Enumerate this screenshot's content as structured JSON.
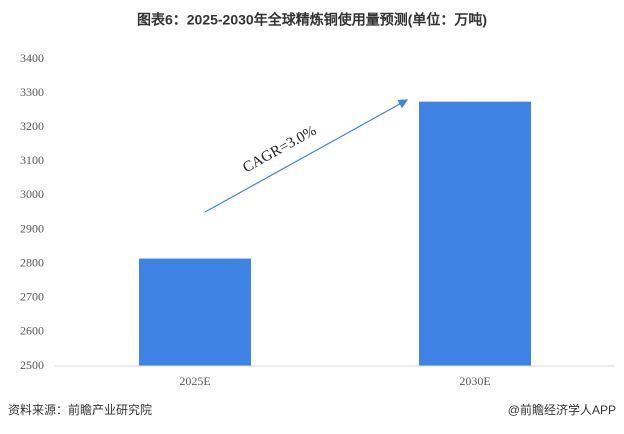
{
  "chart_data": {
    "type": "bar",
    "title": "图表6：2025-2030年全球精炼铜使用量预测(单位：万吨)",
    "categories": [
      "2025E",
      "2030E"
    ],
    "values": [
      2815,
      3275
    ],
    "color": "#3f84e5",
    "ylim": [
      2500,
      3400
    ],
    "yticks": [
      2500,
      2600,
      2700,
      2800,
      2900,
      3000,
      3100,
      3200,
      3300,
      3400
    ],
    "grid": false,
    "annotation": "CAGR=3.0%",
    "source": "资料来源：前瞻产业研究院",
    "credit": "@前瞻经济学人APP"
  }
}
